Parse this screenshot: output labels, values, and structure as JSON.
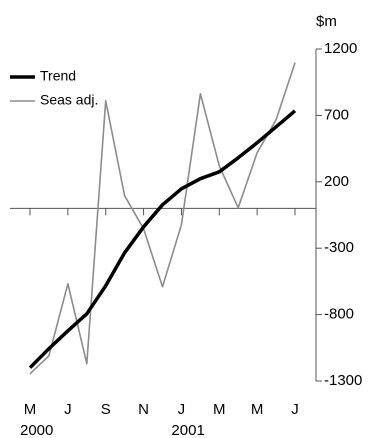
{
  "chart_data": {
    "type": "line",
    "unit_label": "$m",
    "categories": [
      "M",
      null,
      "J",
      null,
      "S",
      null,
      "N",
      null,
      "J",
      null,
      "M",
      null,
      "M",
      null,
      "J"
    ],
    "years": [
      "2000",
      null,
      null,
      null,
      null,
      null,
      null,
      null,
      "2001",
      null,
      null,
      null,
      null,
      null,
      null
    ],
    "series": [
      {
        "name": "Trend",
        "color": "#000000",
        "width": 3.5,
        "values": [
          -1200,
          -1057,
          -922,
          -794,
          -583,
          -335,
          -139,
          27,
          147,
          223,
          275,
          381,
          494,
          614,
          735
        ]
      },
      {
        "name": "Seas adj.",
        "color": "#8c8c8c",
        "width": 1.6,
        "values": [
          -1246,
          -1110,
          -568,
          -1170,
          810,
          95,
          -154,
          -591,
          -124,
          863,
          320,
          4,
          418,
          667,
          1096
        ]
      }
    ],
    "ylim": [
      -1300,
      1200
    ],
    "yticks": [
      1200,
      700,
      200,
      -300,
      -800,
      -1300
    ],
    "legend": "top-left"
  }
}
